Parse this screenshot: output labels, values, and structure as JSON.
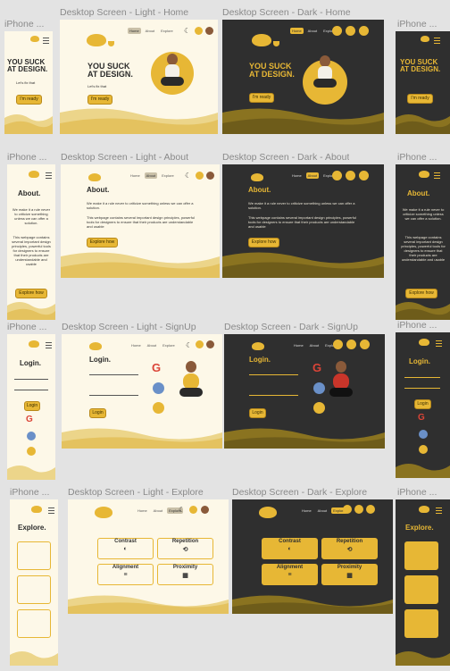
{
  "labels": {
    "iphone_home": "iPhone ...",
    "desk_light_home": "Desktop Screen - Light - Home",
    "desk_dark_home": "Desktop Screen - Dark - Home",
    "iphone_home_dark": "iPhone ...",
    "iphone_about": "iPhone ...",
    "desk_light_about": "Desktop Screen - Light - About",
    "desk_dark_about": "Desktop Screen - Dark - About",
    "iphone_about_dark": "iPhone ...",
    "iphone_signup": "iPhone ...",
    "desk_light_signup": "Desktop Screen - Light - SignUp",
    "desk_dark_signup": "Desktop Screen - Dark - SignUp",
    "iphone_signup_dark": "iPhone ...",
    "iphone_explore": "iPhone ...",
    "desk_light_explore": "Desktop Screen - Light - Explore",
    "desk_dark_explore": "Desktop Screen - Dark - Explore",
    "iphone_explore_dark": "iPhone ..."
  },
  "nav": {
    "home": "Home",
    "about": "About",
    "explore": "Explore"
  },
  "home": {
    "title_line1": "YOU SUCK",
    "title_line2": "AT DESIGN.",
    "subtitle": "Let's fix that",
    "button": "I'm ready"
  },
  "about": {
    "title": "About.",
    "p1": "We make it a rule never to criticize something unless we can offer a solution.",
    "p2": "This webpage contains several important design principles, powerful tools for designers to ensure that their products are understandable and usable",
    "button": "Explore how"
  },
  "signup": {
    "title": "Login.",
    "button": "Login"
  },
  "explore": {
    "title": "Explore.",
    "cards": [
      {
        "label": "Contrast",
        "symbol": "◐"
      },
      {
        "label": "Repetition",
        "symbol": "⟲"
      },
      {
        "label": "Alignment",
        "symbol": "≡"
      },
      {
        "label": "Proximity",
        "symbol": "▦"
      }
    ]
  },
  "colors": {
    "accent": "#e7b735",
    "light_bg": "#fdf8e8",
    "dark_bg": "#2f2f2f",
    "canvas": "#e3e3e3"
  }
}
